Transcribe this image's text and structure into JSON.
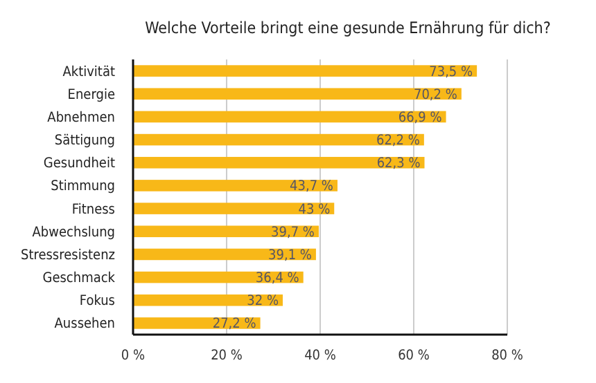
{
  "chart_data": {
    "type": "bar",
    "orientation": "horizontal",
    "title": "Welche Vorteile bringt eine gesunde Ernährung für dich?",
    "categories": [
      "Aktivität",
      "Energie",
      "Abnehmen",
      "Sättigung",
      "Gesundheit",
      "Stimmung",
      "Fitness",
      "Abwechslung",
      "Stressresistenz",
      "Geschmack",
      "Fokus",
      "Aussehen"
    ],
    "values": [
      73.5,
      70.2,
      66.9,
      62.2,
      62.3,
      43.7,
      43,
      39.7,
      39.1,
      36.4,
      32,
      27.2
    ],
    "value_labels": [
      "73,5 %",
      "70,2 %",
      "66,9 %",
      "62,2 %",
      "62,3 %",
      "43,7 %",
      "43 %",
      "39,7 %",
      "39,1 %",
      "36,4 %",
      "32 %",
      "27,2 %"
    ],
    "color": "#f8b818",
    "xlim": [
      0,
      80
    ],
    "xticks": [
      {
        "value": 0,
        "label": "0 %"
      },
      {
        "value": 20,
        "label": "20 %"
      },
      {
        "value": 40,
        "label": "40 %"
      },
      {
        "value": 60,
        "label": "60 %"
      },
      {
        "value": 80,
        "label": "80 %"
      }
    ],
    "grid": "x"
  }
}
